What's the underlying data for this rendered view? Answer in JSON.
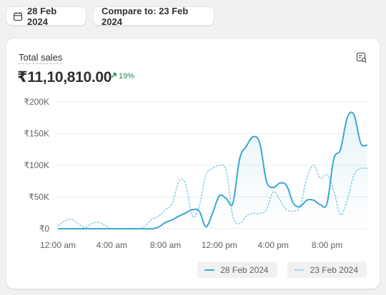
{
  "toolbar": {
    "date_label": "28 Feb 2024",
    "compare_label": "Compare to: 23 Feb 2024"
  },
  "card": {
    "metric_title": "Total sales",
    "metric_value": "₹11,10,810.00",
    "change_value": "19%"
  },
  "colors": {
    "primary": "#3aa6d3",
    "comparison": "#8fcbe6",
    "positive": "#1f8a5a"
  },
  "icons": {
    "date": "calendar-icon",
    "change": "arrow-up-right-icon",
    "explore": "chart-search-icon"
  },
  "chart_data": {
    "type": "line",
    "y_ticks": [
      "₹200K",
      "₹150K",
      "₹100K",
      "₹50K",
      "₹0"
    ],
    "y_tick_values": [
      200000,
      150000,
      100000,
      50000,
      0
    ],
    "ylim": [
      0,
      200000
    ],
    "x_ticks": [
      "12:00 am",
      "4:00 am",
      "8:00 am",
      "12:00 pm",
      "4:00 pm",
      "8:00 pm"
    ],
    "x_tick_hours": [
      0,
      4,
      8,
      12,
      16,
      20
    ],
    "xlim": [
      0,
      23
    ],
    "grid": true,
    "legend_position": "bottom-right",
    "series": [
      {
        "name": "28 Feb 2024",
        "style": "solid",
        "points": [
          [
            0,
            0
          ],
          [
            1,
            0
          ],
          [
            2,
            0
          ],
          [
            3,
            0
          ],
          [
            4,
            0
          ],
          [
            5,
            0
          ],
          [
            6,
            0
          ],
          [
            7,
            0
          ],
          [
            7.5,
            3000
          ],
          [
            8,
            10000
          ],
          [
            8.5,
            14000
          ],
          [
            9,
            20000
          ],
          [
            9.5,
            25000
          ],
          [
            10,
            30000
          ],
          [
            10.5,
            28000
          ],
          [
            11,
            3000
          ],
          [
            11.5,
            25000
          ],
          [
            12,
            52000
          ],
          [
            12.5,
            48000
          ],
          [
            13,
            40000
          ],
          [
            13.5,
            110000
          ],
          [
            14,
            130000
          ],
          [
            14.5,
            145000
          ],
          [
            15,
            135000
          ],
          [
            15.5,
            75000
          ],
          [
            16,
            65000
          ],
          [
            16.5,
            72000
          ],
          [
            17,
            68000
          ],
          [
            17.5,
            40000
          ],
          [
            18,
            35000
          ],
          [
            18.5,
            45000
          ],
          [
            19,
            45000
          ],
          [
            19.5,
            38000
          ],
          [
            20,
            40000
          ],
          [
            20.5,
            110000
          ],
          [
            21,
            125000
          ],
          [
            21.5,
            175000
          ],
          [
            22,
            180000
          ],
          [
            22.5,
            135000
          ],
          [
            23,
            132000
          ]
        ]
      },
      {
        "name": "23 Feb 2024",
        "style": "dotted",
        "points": [
          [
            0,
            5000
          ],
          [
            0.5,
            12000
          ],
          [
            1,
            15000
          ],
          [
            1.5,
            8000
          ],
          [
            2,
            2000
          ],
          [
            2.5,
            8000
          ],
          [
            3,
            10000
          ],
          [
            3.5,
            5000
          ],
          [
            4,
            0
          ],
          [
            5,
            0
          ],
          [
            6,
            0
          ],
          [
            6.5,
            5000
          ],
          [
            7,
            15000
          ],
          [
            7.5,
            20000
          ],
          [
            8,
            30000
          ],
          [
            8.5,
            40000
          ],
          [
            9,
            75000
          ],
          [
            9.5,
            70000
          ],
          [
            10,
            20000
          ],
          [
            10.5,
            35000
          ],
          [
            11,
            85000
          ],
          [
            11.5,
            95000
          ],
          [
            12,
            100000
          ],
          [
            12.5,
            92000
          ],
          [
            13,
            20000
          ],
          [
            13.5,
            8000
          ],
          [
            14,
            20000
          ],
          [
            14.5,
            24000
          ],
          [
            15,
            24000
          ],
          [
            15.5,
            30000
          ],
          [
            16,
            58000
          ],
          [
            16.5,
            45000
          ],
          [
            17,
            30000
          ],
          [
            17.5,
            28000
          ],
          [
            18,
            35000
          ],
          [
            18.5,
            80000
          ],
          [
            19,
            100000
          ],
          [
            19.5,
            80000
          ],
          [
            20,
            85000
          ],
          [
            20.5,
            60000
          ],
          [
            21,
            22000
          ],
          [
            21.5,
            45000
          ],
          [
            22,
            85000
          ],
          [
            22.5,
            95000
          ],
          [
            23,
            95000
          ]
        ]
      }
    ]
  }
}
